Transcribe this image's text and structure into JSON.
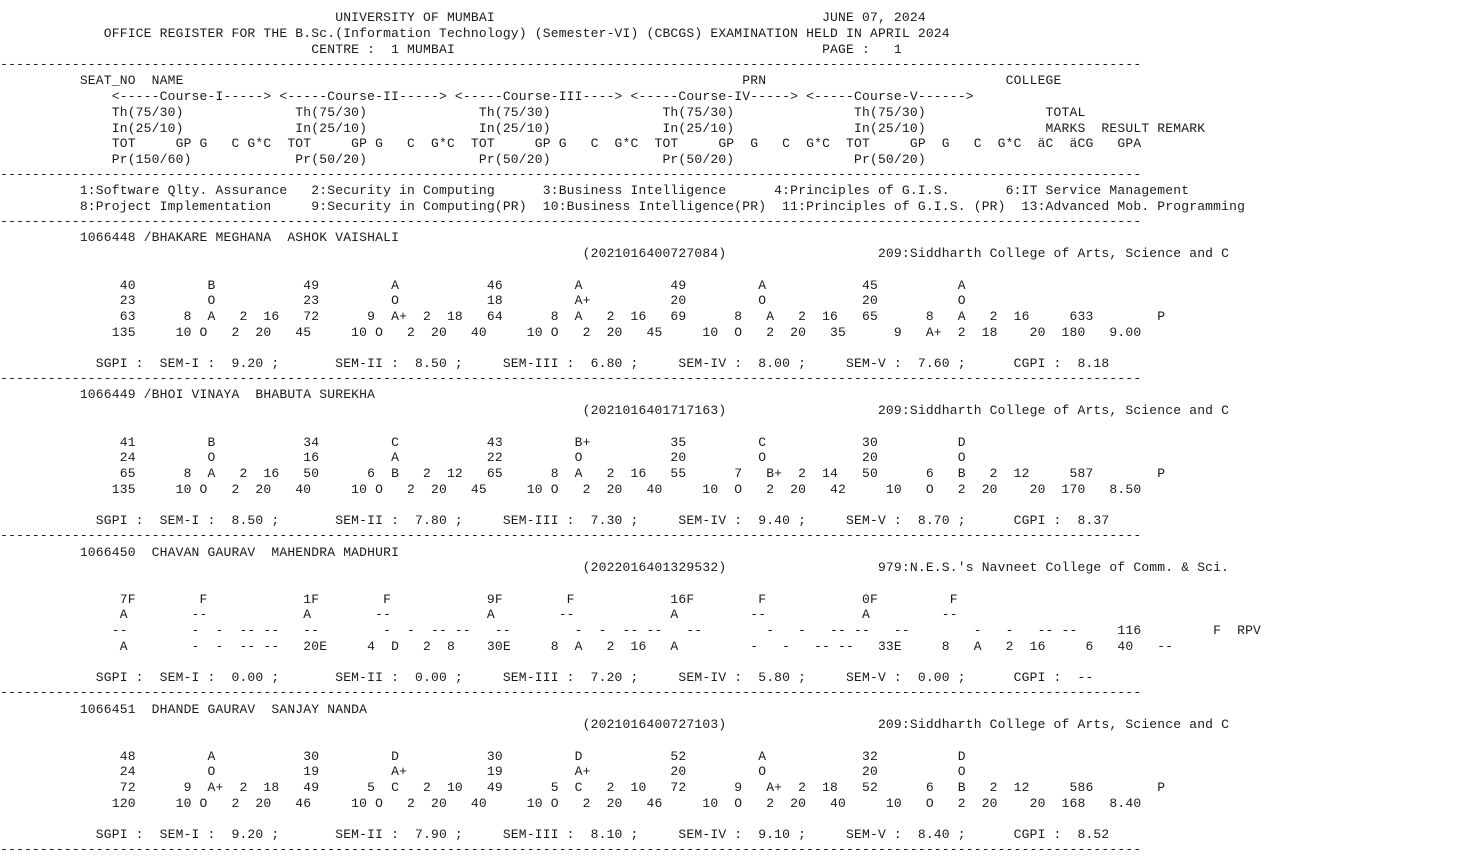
{
  "header": {
    "lines": [
      "                                          UNIVERSITY OF MUMBAI                                         JUNE 07, 2024",
      "             OFFICE REGISTER FOR THE B.Sc.(Information Technology) (Semester-VI) (CBCGS) EXAMINATION HELD IN APRIL 2024",
      "                                       CENTRE :  1 MUMBAI                                              PAGE :   1"
    ]
  },
  "rule": "-----------------------------------------------------------------------------------------------------------------------------------------------",
  "columns_header": {
    "lines": [
      "          SEAT_NO  NAME                                                                      PRN                              COLLEGE",
      "              <-----Course-I-----> <-----Course-II-----> <-----Course-III----> <-----Course-IV-----> <-----Course-V------>",
      "              Th(75/30)              Th(75/30)              Th(75/30)              Th(75/30)               Th(75/30)               TOTAL",
      "              In(25/10)              In(25/10)              In(25/10)              In(25/10)               In(25/10)               MARKS  RESULT REMARK",
      "              TOT     GP G   C G*C  TOT     GP G   C  G*C  TOT     GP G   C  G*C  TOT     GP  G   C  G*C  TOT     GP  G   C  G*C  äC  äCG   GPA",
      "              Pr(150/60)             Pr(50/20)              Pr(50/20)              Pr(50/20)               Pr(50/20)"
    ]
  },
  "courses": {
    "lines": [
      "          1:Software Qlty. Assurance   2:Security in Computing      3:Business Intelligence      4:Principles of G.I.S.       6:IT Service Management",
      "          8:Project Implementation     9:Security in Computing(PR)  10:Business Intelligence(PR)  11:Principles of G.I.S. (PR)  13:Advanced Mob. Programming"
    ]
  },
  "students": [
    {
      "id": "1066448",
      "lines": [
        "          1066448 /BHAKARE MEGHANA  ASHOK VAISHALI",
        "                                                                         (2021016400727084)                   209:Siddharth College of Arts, Science and C",
        "",
        "               40         B           49         A           46         A           49         A            45          A",
        "               23         O           23         O           18         A+          20         O            20          O",
        "               63      8  A   2  16   72      9  A+  2  18   64      8  A   2  16   69      8   A   2  16   65      8   A   2  16     633        P",
        "              135     10 O   2  20   45     10 O   2  20   40     10 O   2  20   45     10  O   2  20   35      9   A+  2  18    20  180   9.00",
        "",
        "            SGPI :  SEM-I :  9.20 ;       SEM-II :  8.50 ;     SEM-III :  6.80 ;     SEM-IV :  8.00 ;     SEM-V :  7.60 ;      CGPI :  8.18"
      ]
    },
    {
      "id": "1066449",
      "lines": [
        "          1066449 /BHOI VINAYA  BHABUTA SUREKHA",
        "                                                                         (2021016401717163)                   209:Siddharth College of Arts, Science and C",
        "",
        "               41         B           34         C           43         B+          35         C            30          D",
        "               24         O           16         A           22         O           20         O            20          O",
        "               65      8  A   2  16   50      6  B   2  12   65      8  A   2  16   55      7   B+  2  14   50      6   B   2  12     587        P",
        "              135     10 O   2  20   40     10 O   2  20   45     10 O   2  20   40     10  O   2  20   42     10   O   2  20    20  170   8.50",
        "",
        "            SGPI :  SEM-I :  8.50 ;       SEM-II :  7.80 ;     SEM-III :  7.30 ;     SEM-IV :  9.40 ;     SEM-V :  8.70 ;      CGPI :  8.37"
      ]
    },
    {
      "id": "1066450",
      "lines": [
        "          1066450  CHAVAN GAURAV  MAHENDRA MADHURI",
        "                                                                         (2022016401329532)                   979:N.E.S.'s Navneet College of Comm. & Sci.",
        "",
        "               7F        F            1F        F            9F        F            16F        F            0F         F",
        "               A        --            A        --            A        --            A         --            A         --",
        "              --        -  -  -- --   --        -  -  -- --   --        -  -  -- --   --        -   -   -- --   --        -   -   -- --     116         F  RPV",
        "               A        -  -  -- --   20E     4  D   2  8    30E     8  A   2  16   A         -   -   -- --   33E     8   A   2  16     6   40   --",
        "",
        "            SGPI :  SEM-I :  0.00 ;       SEM-II :  0.00 ;     SEM-III :  7.20 ;     SEM-IV :  5.80 ;     SEM-V :  0.00 ;      CGPI :  --"
      ]
    },
    {
      "id": "1066451",
      "lines": [
        "          1066451  DHANDE GAURAV  SANJAY NANDA",
        "                                                                         (2021016400727103)                   209:Siddharth College of Arts, Science and C",
        "",
        "               48         A           30         D           30         D           52         A            32          D",
        "               24         O           19         A+          19         A+          20         O            20          O",
        "               72      9  A+  2  18   49      5  C   2  10   49      5  C   2  10   72      9   A+  2  18   52      6   B   2  12     586        P",
        "              120     10 O   2  20   46     10 O   2  20   40     10 O   2  20   46     10  O   2  20   40     10   O   2  20    20  168   8.40",
        "",
        "            SGPI :  SEM-I :  9.20 ;       SEM-II :  7.90 ;     SEM-III :  8.10 ;     SEM-IV :  9.10 ;     SEM-V :  8.40 ;      CGPI :  8.52"
      ]
    }
  ]
}
